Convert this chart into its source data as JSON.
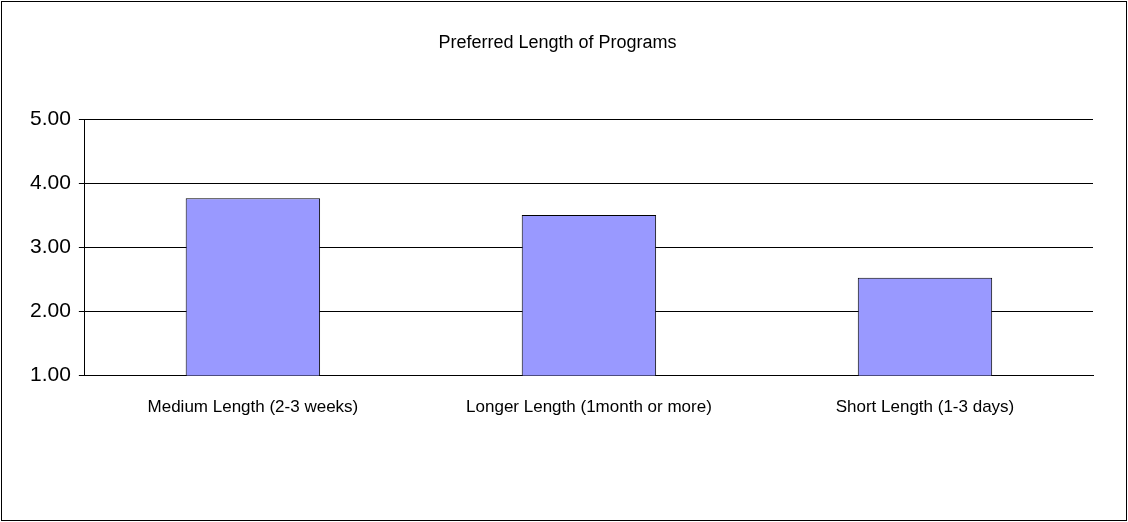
{
  "chart_data": {
    "type": "bar",
    "title": "Preferred Length of Programs",
    "categories": [
      "Medium Length (2-3 weeks)",
      "Longer Length (1month or more)",
      "Short Length (1-3 days)"
    ],
    "values": [
      3.77,
      3.51,
      2.53
    ],
    "color": "#9999ff",
    "ylim": [
      1,
      5
    ],
    "yticks": [
      {
        "value": 1,
        "label": "1.00"
      },
      {
        "value": 2,
        "label": "2.00"
      },
      {
        "value": 3,
        "label": "3.00"
      },
      {
        "value": 4,
        "label": "4.00"
      },
      {
        "value": 5,
        "label": "5.00"
      }
    ],
    "grid": "y",
    "legend": false
  }
}
